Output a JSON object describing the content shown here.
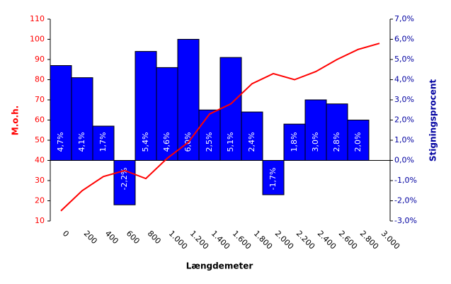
{
  "chart_data": {
    "type": "combo",
    "y_label": "M.o.h.",
    "y2_label": "Stigningsprocent",
    "x_label": "Længdemeter",
    "categories": [
      "0",
      "200",
      "400",
      "600",
      "800",
      "1.000",
      "1.200",
      "1.400",
      "1.600",
      "1.800",
      "2.000",
      "2.200",
      "2.400",
      "2.600",
      "2.800",
      "3.000"
    ],
    "series": [
      {
        "type": "bar",
        "axis": "y2",
        "color": "#0000ff",
        "values": [
          4.7,
          4.1,
          1.7,
          -2.2,
          5.4,
          4.6,
          6.0,
          2.5,
          5.1,
          2.4,
          -1.7,
          1.8,
          3.0,
          2.8,
          2.0,
          null
        ],
        "value_labels": [
          "4,7%",
          "4,1%",
          "1,7%",
          "-2,2%",
          "5,4%",
          "4,6%",
          "6,0%",
          "2,5%",
          "5,1%",
          "2,4%",
          "-1,7%",
          "1,8%",
          "3,0%",
          "2,8%",
          "2,0%",
          null
        ]
      },
      {
        "type": "line",
        "color": "#ff0000",
        "values": [
          15,
          25,
          32,
          35,
          31,
          41,
          49,
          63,
          68,
          78,
          83,
          80,
          84,
          90,
          95,
          98
        ]
      }
    ],
    "ylim": [
      10,
      110
    ],
    "yticks": [
      10,
      20,
      30,
      40,
      50,
      60,
      70,
      80,
      90,
      100,
      110
    ],
    "y2lim": [
      -3.0,
      7.0
    ],
    "y2ticks": [
      {
        "value": -3.0,
        "label": "-3,0%"
      },
      {
        "value": -2.0,
        "label": "-2,0%"
      },
      {
        "value": -1.0,
        "label": "-1,0%"
      },
      {
        "value": 0.0,
        "label": "0,0%"
      },
      {
        "value": 1.0,
        "label": "1,0%"
      },
      {
        "value": 2.0,
        "label": "2,0%"
      },
      {
        "value": 3.0,
        "label": "3,0%"
      },
      {
        "value": 4.0,
        "label": "4,0%"
      },
      {
        "value": 5.0,
        "label": "5,0%"
      },
      {
        "value": 6.0,
        "label": "6,0%"
      },
      {
        "value": 7.0,
        "label": "7,0%"
      }
    ]
  }
}
